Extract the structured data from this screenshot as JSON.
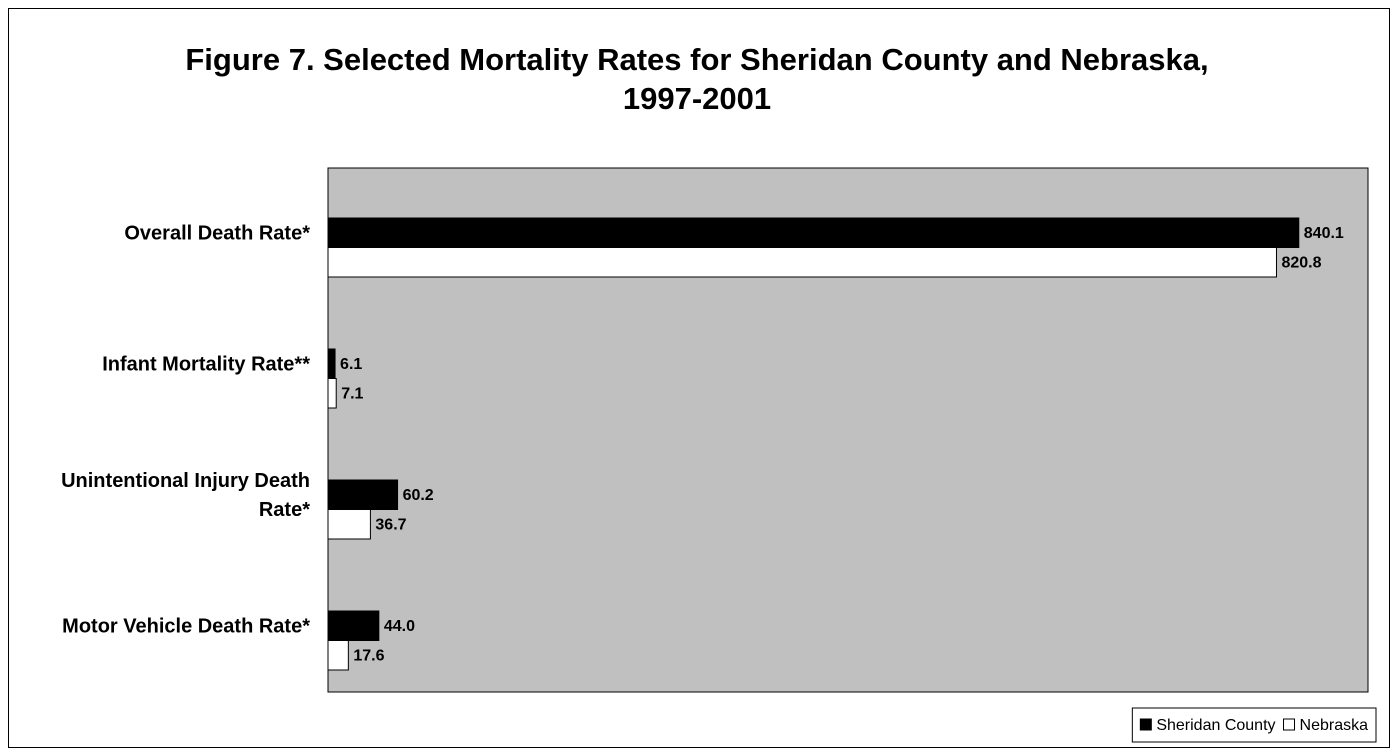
{
  "chart_data": {
    "type": "bar",
    "orientation": "horizontal",
    "title": "Figure 7. Selected Mortality Rates for Sheridan County and Nebraska, 1997-2001",
    "categories": [
      "Overall Death Rate*",
      "Infant Mortality Rate**",
      "Unintentional Injury Death Rate*",
      "Motor Vehicle Death Rate*"
    ],
    "series": [
      {
        "name": "Sheridan County",
        "color": "#000000",
        "values": [
          840.1,
          6.1,
          60.2,
          44.0
        ],
        "value_labels": [
          "840.1",
          "6.1",
          "60.2",
          "44.0"
        ]
      },
      {
        "name": "Nebraska",
        "color": "#ffffff",
        "values": [
          820.8,
          7.1,
          36.7,
          17.6
        ],
        "value_labels": [
          "820.8",
          "7.1",
          "36.7",
          "17.6"
        ]
      }
    ],
    "xlim": [
      0,
      900
    ],
    "plot_background": "#c0c0c0",
    "legend": "bottom-right"
  }
}
